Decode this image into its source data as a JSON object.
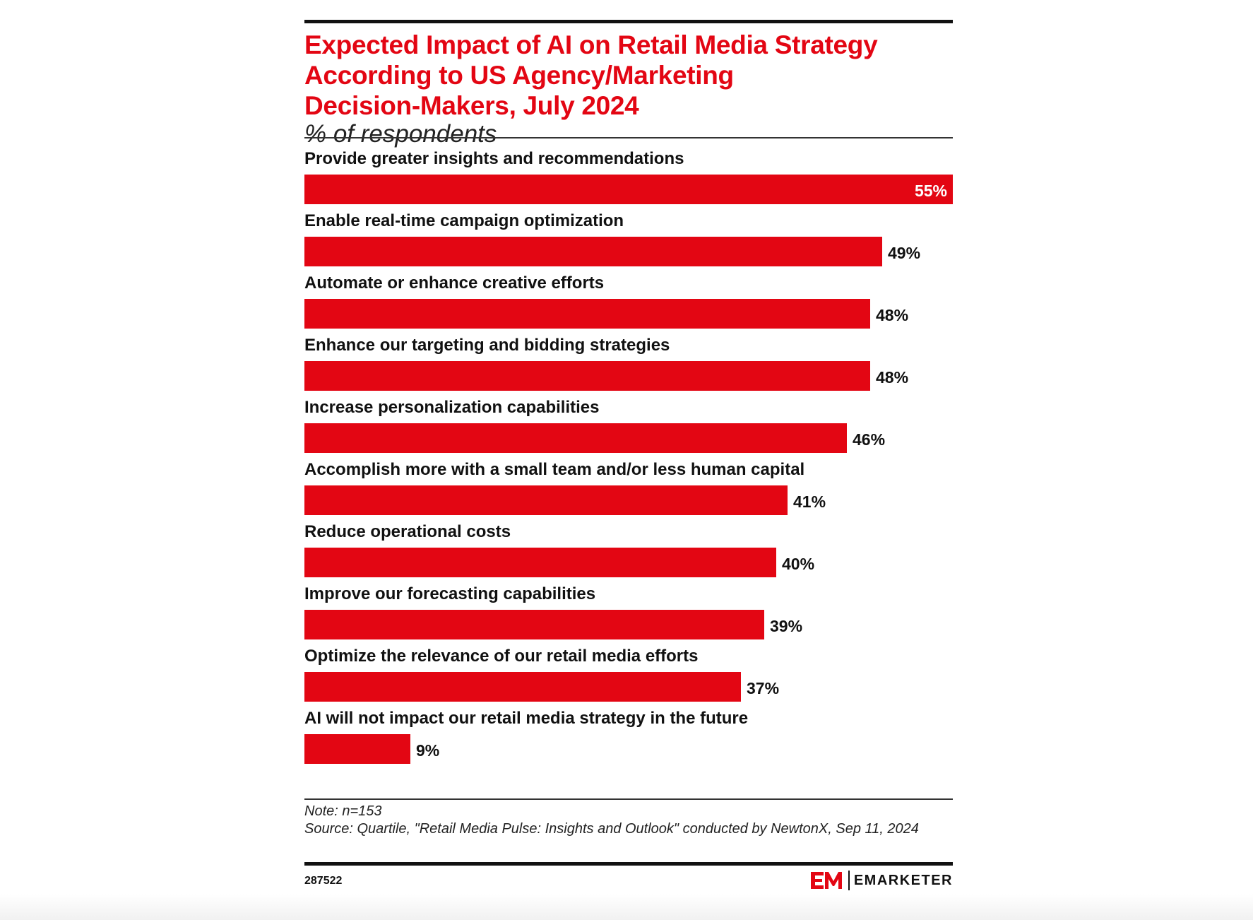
{
  "chart_data": {
    "type": "bar",
    "orientation": "horizontal",
    "title": "Expected Impact of AI on Retail Media Strategy\nAccording to US Agency/Marketing\nDecision-Makers, July 2024",
    "subtitle": "% of respondents",
    "categories": [
      "Provide greater insights and recommendations",
      "Enable real-time campaign optimization",
      "Automate or enhance creative efforts",
      "Enhance our targeting and bidding strategies",
      "Increase personalization capabilities",
      "Accomplish more with a small team and/or less human capital",
      "Reduce operational costs",
      "Improve our forecasting capabilities",
      "Optimize the relevance of our retail media efforts",
      "AI will not impact our retail media strategy in the future"
    ],
    "values": [
      55,
      49,
      48,
      48,
      46,
      41,
      40,
      39,
      37,
      9
    ],
    "value_labels": [
      "55%",
      "49%",
      "48%",
      "48%",
      "46%",
      "41%",
      "40%",
      "39%",
      "37%",
      "9%"
    ],
    "xlim": [
      0,
      55
    ],
    "bar_color": "#e30613",
    "grid": false,
    "legend": "none"
  },
  "footer": {
    "note": "Note: n=153",
    "source": "Source: Quartile, \"Retail Media Pulse: Insights and Outlook\" conducted by NewtonX, Sep 11, 2024",
    "chart_id": "287522",
    "brand_name": "EMARKETER",
    "brand_icon": "em-logo-icon"
  },
  "colors": {
    "title": "#e30613",
    "bar": "#e30613",
    "text": "#111111"
  }
}
